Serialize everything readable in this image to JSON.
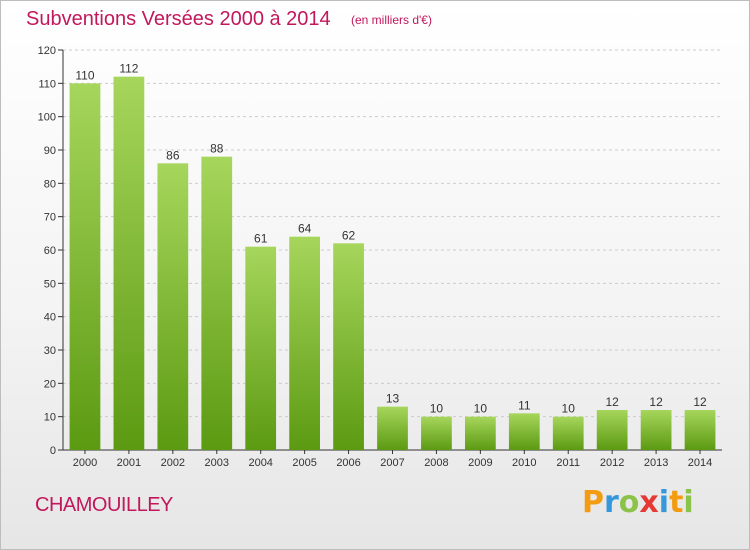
{
  "title": "Subventions Versées 2000 à 2014",
  "subtitle": "(en milliers d'€)",
  "commune": "CHAMOUILLEY",
  "brand": {
    "letters": [
      "P",
      "r",
      "o",
      "x",
      "i",
      "t",
      "i"
    ],
    "colors": [
      "#f39c12",
      "#3498db",
      "#8bc34a",
      "#e53935",
      "#3498db",
      "#f39c12",
      "#8bc34a"
    ]
  },
  "colors": {
    "bar_top": "#a6d65c",
    "bar_bottom": "#5c9a12",
    "title": "#c2185b",
    "grid": "#cccccc"
  },
  "chart_data": {
    "type": "bar",
    "categories": [
      "2000",
      "2001",
      "2002",
      "2003",
      "2004",
      "2005",
      "2006",
      "2007",
      "2008",
      "2009",
      "2010",
      "2011",
      "2012",
      "2013",
      "2014"
    ],
    "values": [
      110,
      112,
      86,
      88,
      61,
      64,
      62,
      13,
      10,
      10,
      11,
      10,
      12,
      12,
      12
    ],
    "value_labels": [
      "110",
      "112",
      "86",
      "88",
      "61",
      "64",
      "62",
      "13",
      "10",
      "10",
      "11",
      "10",
      "12",
      "12",
      "12"
    ],
    "yticks": [
      0,
      10,
      20,
      30,
      40,
      50,
      60,
      70,
      80,
      90,
      100,
      110,
      120
    ],
    "ylim": [
      0,
      120
    ],
    "grid": true,
    "legend": "none"
  }
}
